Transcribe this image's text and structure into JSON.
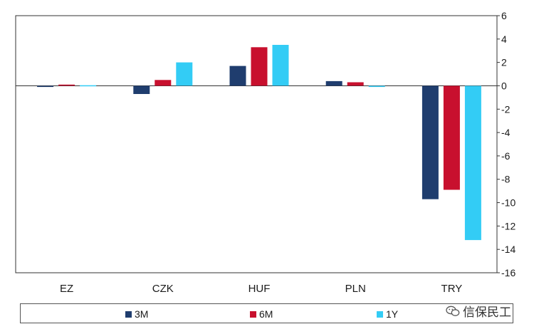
{
  "chart_data": {
    "type": "bar",
    "categories": [
      "EZ",
      "CZK",
      "HUF",
      "PLN",
      "TRY"
    ],
    "series": [
      {
        "name": "3M",
        "color": "#1f3d6e",
        "values": [
          -0.1,
          -0.7,
          1.7,
          0.4,
          -9.7
        ]
      },
      {
        "name": "6M",
        "color": "#c8102e",
        "values": [
          0.1,
          0.5,
          3.3,
          0.3,
          -8.9
        ]
      },
      {
        "name": "1Y",
        "color": "#33ccf5",
        "values": [
          0.0,
          2.0,
          3.5,
          -0.1,
          -13.2
        ]
      }
    ],
    "yticks": [
      6,
      4,
      2,
      0,
      -2,
      -4,
      -6,
      -8,
      -10,
      -12,
      -14,
      -16
    ],
    "ylim": [
      -16,
      6
    ],
    "y_axis_side": "right",
    "grid": false,
    "legend_position": "bottom"
  },
  "watermark": {
    "text": "信保民工",
    "icon": "wechat-icon"
  }
}
